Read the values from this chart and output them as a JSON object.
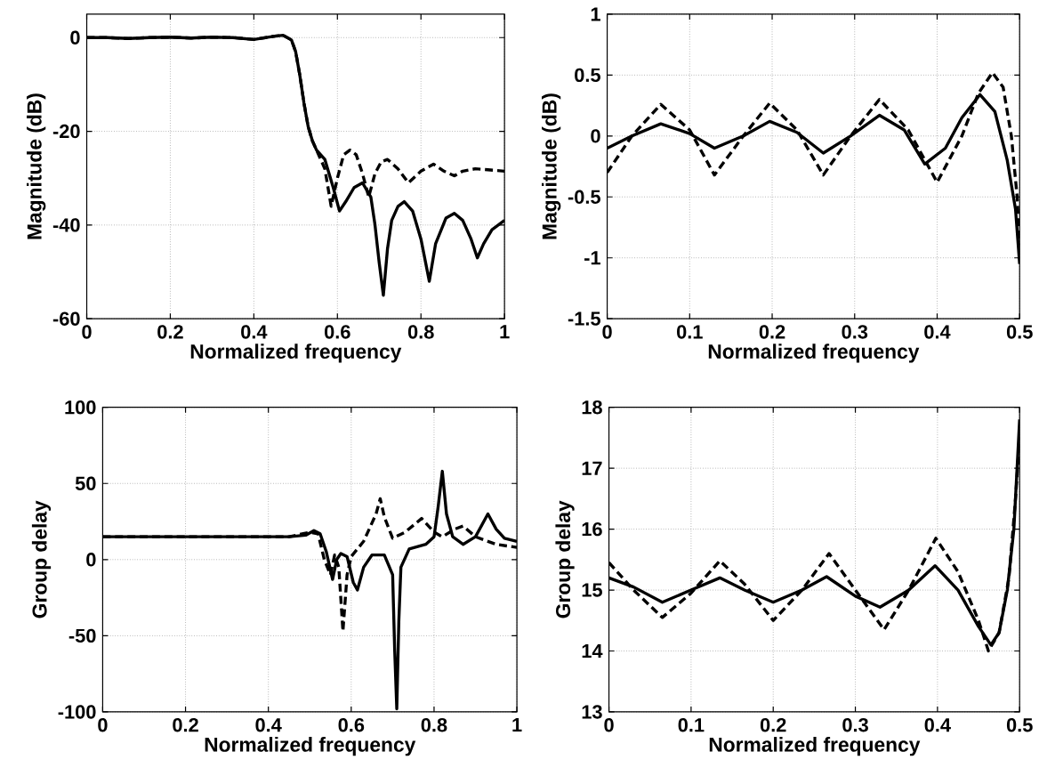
{
  "chart_data": [
    {
      "type": "line",
      "xlabel": "Normalized frequency",
      "ylabel": "Magnitude (dB)",
      "xlim": [
        0,
        1
      ],
      "ylim": [
        -60,
        5
      ],
      "xticks": [
        0,
        0.2,
        0.4,
        0.6,
        0.8,
        1
      ],
      "yticks": [
        -60,
        -40,
        -20,
        0
      ],
      "grid": true,
      "series": [
        {
          "color": "#000000",
          "line_style": "solid",
          "x": [
            0,
            0.05,
            0.1,
            0.15,
            0.2,
            0.25,
            0.3,
            0.35,
            0.4,
            0.45,
            0.47,
            0.49,
            0.5,
            0.51,
            0.52,
            0.53,
            0.54,
            0.55,
            0.57,
            0.59,
            0.605,
            0.62,
            0.64,
            0.66,
            0.68,
            0.69,
            0.7,
            0.71,
            0.72,
            0.73,
            0.745,
            0.76,
            0.78,
            0.8,
            0.82,
            0.835,
            0.86,
            0.88,
            0.9,
            0.92,
            0.935,
            0.95,
            0.97,
            1
          ],
          "values": [
            0,
            0,
            -0.2,
            0,
            0.1,
            -0.1,
            0.1,
            0,
            -0.4,
            0.3,
            0.5,
            -0.5,
            -3,
            -8,
            -14,
            -19,
            -22,
            -24,
            -26,
            -32,
            -37,
            -35,
            -32,
            -31,
            -34,
            -40,
            -48,
            -55,
            -45,
            -39,
            -36,
            -35,
            -37,
            -43,
            -52,
            -44,
            -38.5,
            -37.5,
            -39,
            -43,
            -47,
            -44,
            -41,
            -39
          ]
        },
        {
          "color": "#000000",
          "line_style": "dashed",
          "x": [
            0,
            0.05,
            0.1,
            0.15,
            0.2,
            0.25,
            0.3,
            0.35,
            0.4,
            0.45,
            0.47,
            0.49,
            0.5,
            0.51,
            0.52,
            0.53,
            0.54,
            0.55,
            0.57,
            0.585,
            0.6,
            0.615,
            0.63,
            0.645,
            0.66,
            0.675,
            0.69,
            0.705,
            0.72,
            0.745,
            0.77,
            0.8,
            0.83,
            0.855,
            0.88,
            0.9,
            0.93,
            0.96,
            1
          ],
          "values": [
            0,
            0,
            -0.2,
            0,
            0.1,
            -0.1,
            0.1,
            0,
            -0.4,
            0.3,
            0.5,
            -0.5,
            -3,
            -8,
            -14,
            -19,
            -22,
            -24,
            -28,
            -36,
            -30,
            -25,
            -24,
            -25,
            -29,
            -34,
            -29,
            -26.5,
            -26,
            -28,
            -31,
            -28.5,
            -27,
            -28.5,
            -29.5,
            -28.5,
            -28,
            -28.2,
            -28.5
          ]
        }
      ]
    },
    {
      "type": "line",
      "xlabel": "Normalized frequency",
      "ylabel": "Magnitude (dB)",
      "xlim": [
        0,
        0.5
      ],
      "ylim": [
        -1.5,
        1
      ],
      "xticks": [
        0,
        0.1,
        0.2,
        0.3,
        0.4,
        0.5
      ],
      "yticks": [
        -1.5,
        -1,
        -0.5,
        0,
        0.5,
        1
      ],
      "grid": true,
      "series": [
        {
          "color": "#000000",
          "line_style": "solid",
          "x": [
            0,
            0.03,
            0.065,
            0.1,
            0.13,
            0.165,
            0.197,
            0.23,
            0.262,
            0.295,
            0.33,
            0.36,
            0.385,
            0.41,
            0.43,
            0.452,
            0.47,
            0.485,
            0.495,
            0.5
          ],
          "values": [
            -0.1,
            0,
            0.1,
            0.02,
            -0.1,
            0,
            0.12,
            0.03,
            -0.14,
            0,
            0.17,
            0.05,
            -0.23,
            -0.1,
            0.15,
            0.34,
            0.2,
            -0.2,
            -0.6,
            -1.05
          ]
        },
        {
          "color": "#000000",
          "line_style": "dashed",
          "x": [
            0,
            0.03,
            0.065,
            0.1,
            0.13,
            0.165,
            0.197,
            0.23,
            0.262,
            0.295,
            0.33,
            0.365,
            0.4,
            0.43,
            0.45,
            0.467,
            0.48,
            0.49,
            0.497,
            0.5
          ],
          "values": [
            -0.3,
            0,
            0.26,
            0.05,
            -0.32,
            0,
            0.27,
            0.05,
            -0.32,
            0,
            0.3,
            0.05,
            -0.38,
            0,
            0.35,
            0.52,
            0.4,
            0,
            -0.5,
            -0.9
          ]
        }
      ]
    },
    {
      "type": "line",
      "xlabel": "Normalized frequency",
      "ylabel": "Group delay",
      "xlim": [
        0,
        1
      ],
      "ylim": [
        -100,
        100
      ],
      "xticks": [
        0,
        0.2,
        0.4,
        0.6,
        0.8,
        1
      ],
      "yticks": [
        -100,
        -50,
        0,
        50,
        100
      ],
      "grid": true,
      "series": [
        {
          "color": "#000000",
          "line_style": "solid",
          "x": [
            0,
            0.45,
            0.49,
            0.51,
            0.525,
            0.54,
            0.555,
            0.565,
            0.575,
            0.59,
            0.605,
            0.615,
            0.63,
            0.65,
            0.68,
            0.7,
            0.705,
            0.71,
            0.715,
            0.72,
            0.74,
            0.78,
            0.8,
            0.81,
            0.82,
            0.83,
            0.845,
            0.87,
            0.9,
            0.93,
            0.95,
            0.97,
            1
          ],
          "values": [
            15,
            15,
            16,
            19,
            17,
            5,
            -13,
            0,
            4,
            2,
            -15,
            -20,
            -5,
            3,
            3,
            -10,
            -60,
            -98,
            -40,
            -5,
            7,
            10,
            15,
            35,
            58,
            30,
            15,
            10,
            15,
            30,
            20,
            14,
            12
          ]
        },
        {
          "color": "#000000",
          "line_style": "dashed",
          "x": [
            0,
            0.45,
            0.5,
            0.52,
            0.535,
            0.55,
            0.56,
            0.57,
            0.58,
            0.59,
            0.6,
            0.63,
            0.66,
            0.67,
            0.68,
            0.7,
            0.73,
            0.77,
            0.8,
            0.82,
            0.85,
            0.87,
            0.9,
            0.95,
            1
          ],
          "values": [
            15,
            15,
            18,
            17,
            0,
            -10,
            3,
            -5,
            -47,
            -10,
            2,
            12,
            30,
            40,
            28,
            14,
            18,
            27,
            18,
            15,
            20,
            22,
            15,
            10,
            8
          ]
        }
      ]
    },
    {
      "type": "line",
      "xlabel": "Normalized frequency",
      "ylabel": "Group delay",
      "xlim": [
        0,
        0.5
      ],
      "ylim": [
        13,
        18
      ],
      "xticks": [
        0,
        0.1,
        0.2,
        0.3,
        0.4,
        0.5
      ],
      "yticks": [
        13,
        14,
        15,
        16,
        17,
        18
      ],
      "grid": true,
      "series": [
        {
          "color": "#000000",
          "line_style": "solid",
          "x": [
            0,
            0.03,
            0.065,
            0.1,
            0.135,
            0.165,
            0.2,
            0.235,
            0.265,
            0.3,
            0.33,
            0.365,
            0.397,
            0.425,
            0.45,
            0.465,
            0.475,
            0.485,
            0.493,
            0.5
          ],
          "values": [
            15.2,
            15.05,
            14.8,
            15,
            15.2,
            15,
            14.8,
            15,
            15.22,
            14.9,
            14.72,
            15,
            15.4,
            15,
            14.4,
            14.1,
            14.3,
            15,
            16,
            17.8
          ]
        },
        {
          "color": "#000000",
          "line_style": "dashed",
          "x": [
            0,
            0.03,
            0.065,
            0.1,
            0.135,
            0.165,
            0.2,
            0.235,
            0.268,
            0.3,
            0.335,
            0.365,
            0.398,
            0.425,
            0.45,
            0.462,
            0.475,
            0.487,
            0.495,
            0.5
          ],
          "values": [
            15.45,
            15,
            14.55,
            14.95,
            15.48,
            15.1,
            14.5,
            15,
            15.6,
            15,
            14.35,
            15,
            15.85,
            15.3,
            14.5,
            14,
            14.3,
            15.2,
            16.5,
            17.5
          ]
        }
      ]
    }
  ]
}
